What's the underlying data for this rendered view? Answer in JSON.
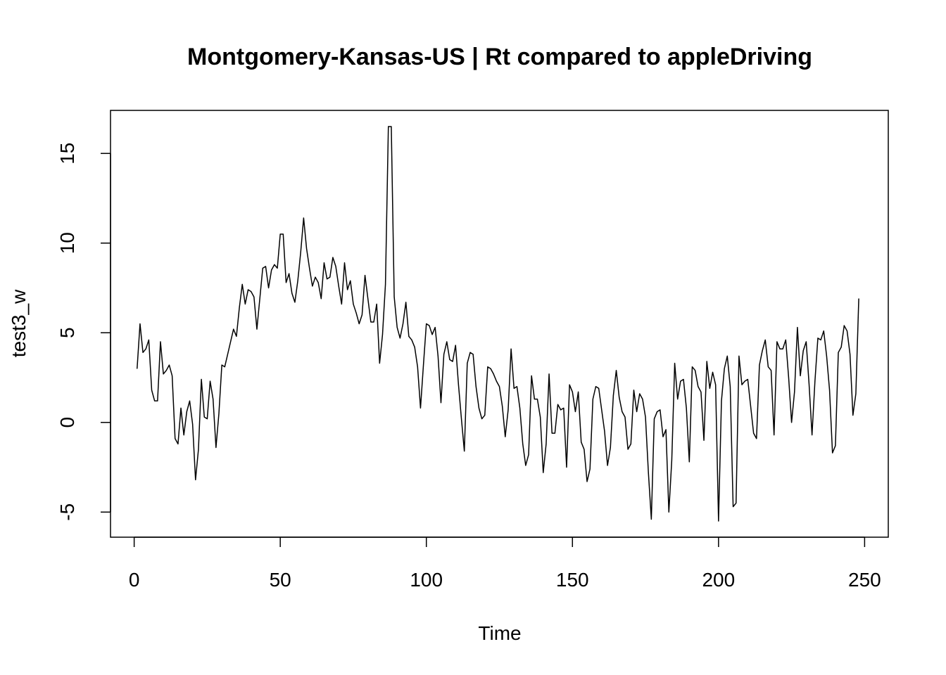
{
  "chart_data": {
    "type": "line",
    "title": "Montgomery-Kansas-US | Rt compared to appleDriving",
    "xlabel": "Time",
    "ylabel": "test3_w",
    "xlim": [
      -8.1,
      258.1
    ],
    "ylim": [
      -6.4,
      17.4
    ],
    "xticks": [
      0,
      50,
      100,
      150,
      200,
      250
    ],
    "yticks": [
      -5,
      0,
      5,
      10,
      15
    ],
    "xtick_labels": [
      "0",
      "50",
      "100",
      "150",
      "200",
      "250"
    ],
    "ytick_labels": [
      "-5",
      "0",
      "5",
      "10",
      "15"
    ],
    "grid": false,
    "line_color": "#000000",
    "series": [
      {
        "x": [
          1,
          2,
          3,
          4,
          5,
          6,
          7,
          8,
          9,
          10,
          11,
          12,
          13,
          14,
          15,
          16,
          17,
          18,
          19,
          20,
          21,
          22,
          23,
          24,
          25,
          26,
          27,
          28,
          29,
          30,
          31,
          32,
          33,
          34,
          35,
          36,
          37,
          38,
          39,
          40,
          41,
          42,
          43,
          44,
          45,
          46,
          47,
          48,
          49,
          50,
          51,
          52,
          53,
          54,
          55,
          56,
          57,
          58,
          59,
          60,
          61,
          62,
          63,
          64,
          65,
          66,
          67,
          68,
          69,
          70,
          71,
          72,
          73,
          74,
          75,
          76,
          77,
          78,
          79,
          80,
          81,
          82,
          83,
          84,
          85,
          86,
          87,
          88,
          89,
          90,
          91,
          92,
          93,
          94,
          95,
          96,
          97,
          98,
          99,
          100,
          101,
          102,
          103,
          104,
          105,
          106,
          107,
          108,
          109,
          110,
          111,
          112,
          113,
          114,
          115,
          116,
          117,
          118,
          119,
          120,
          121,
          122,
          123,
          124,
          125,
          126,
          127,
          128,
          129,
          130,
          131,
          132,
          133,
          134,
          135,
          136,
          137,
          138,
          139,
          140,
          141,
          142,
          143,
          144,
          145,
          146,
          147,
          148,
          149,
          150,
          151,
          152,
          153,
          154,
          155,
          156,
          157,
          158,
          159,
          160,
          161,
          162,
          163,
          164,
          165,
          166,
          167,
          168,
          169,
          170,
          171,
          172,
          173,
          174,
          175,
          176,
          177,
          178,
          179,
          180,
          181,
          182,
          183,
          184,
          185,
          186,
          187,
          188,
          189,
          190,
          191,
          192,
          193,
          194,
          195,
          196,
          197,
          198,
          199,
          200,
          201,
          202,
          203,
          204,
          205,
          206,
          207,
          208,
          209,
          210,
          211,
          212,
          213,
          214,
          215,
          216,
          217,
          218,
          219,
          220,
          221,
          222,
          223,
          224,
          225,
          226,
          227,
          228,
          229,
          230,
          231,
          232,
          233,
          234,
          235,
          236,
          237,
          238,
          239,
          240,
          241,
          242,
          243,
          244,
          245,
          246,
          247,
          248
        ],
        "values": [
          3.0,
          5.5,
          3.9,
          4.1,
          4.6,
          1.8,
          1.2,
          1.2,
          4.5,
          2.7,
          2.9,
          3.2,
          2.6,
          -0.9,
          -1.2,
          0.8,
          -0.7,
          0.6,
          1.2,
          -0.1,
          -3.2,
          -1.5,
          2.4,
          0.3,
          0.2,
          2.3,
          1.3,
          -1.4,
          0.5,
          3.2,
          3.1,
          3.8,
          4.5,
          5.2,
          4.8,
          6.4,
          7.7,
          6.6,
          7.4,
          7.3,
          7.0,
          5.2,
          6.9,
          8.6,
          8.7,
          7.5,
          8.5,
          8.8,
          8.6,
          10.5,
          10.5,
          7.8,
          8.3,
          7.2,
          6.7,
          7.9,
          9.5,
          11.4,
          9.7,
          8.6,
          7.6,
          8.1,
          7.8,
          6.9,
          8.9,
          8.0,
          8.1,
          9.2,
          8.7,
          7.6,
          6.6,
          8.9,
          7.4,
          7.9,
          6.6,
          6.1,
          5.5,
          6.0,
          8.2,
          6.9,
          5.6,
          5.6,
          6.6,
          3.3,
          4.9,
          7.7,
          16.5,
          16.5,
          7.0,
          5.3,
          4.7,
          5.5,
          6.7,
          4.8,
          4.6,
          4.2,
          3.1,
          0.8,
          3.2,
          5.5,
          5.4,
          4.9,
          5.3,
          3.7,
          1.1,
          3.8,
          4.5,
          3.5,
          3.4,
          4.3,
          2.1,
          0.2,
          -1.6,
          3.3,
          3.9,
          3.8,
          2.0,
          0.8,
          0.2,
          0.4,
          3.1,
          3.0,
          2.7,
          2.3,
          2.0,
          0.9,
          -0.8,
          0.7,
          4.1,
          1.9,
          2.0,
          0.8,
          -1.2,
          -2.4,
          -1.8,
          2.6,
          1.3,
          1.3,
          0.3,
          -2.8,
          -1.2,
          2.7,
          -0.6,
          -0.6,
          1.0,
          0.7,
          0.8,
          -2.5,
          2.1,
          1.7,
          0.6,
          1.7,
          -1.1,
          -1.5,
          -3.3,
          -2.6,
          1.3,
          2.0,
          1.9,
          0.7,
          -0.5,
          -2.4,
          -1.4,
          1.5,
          2.9,
          1.4,
          0.6,
          0.3,
          -1.5,
          -1.2,
          1.8,
          0.6,
          1.6,
          1.3,
          0.3,
          -2.8,
          -5.4,
          0.2,
          0.6,
          0.7,
          -0.8,
          -0.4,
          -5.0,
          -2.1,
          3.3,
          1.3,
          2.3,
          2.4,
          0.8,
          -2.2,
          3.1,
          2.9,
          2.0,
          1.7,
          -1.0,
          3.4,
          1.9,
          2.8,
          2.1,
          -5.5,
          1.2,
          3.0,
          3.7,
          2.0,
          -4.7,
          -4.5,
          3.7,
          2.1,
          2.3,
          2.4,
          0.9,
          -0.6,
          -0.9,
          3.2,
          4.0,
          4.6,
          3.1,
          2.9,
          -0.7,
          4.5,
          4.1,
          4.1,
          4.6,
          2.5,
          0.0,
          1.7,
          5.3,
          2.6,
          4.0,
          4.5,
          2.1,
          -0.7,
          2.3,
          4.7,
          4.6,
          5.1,
          3.7,
          1.8,
          -1.7,
          -1.3,
          3.9,
          4.2,
          5.4,
          5.1,
          3.8,
          0.4,
          1.6,
          6.9
        ]
      }
    ]
  }
}
